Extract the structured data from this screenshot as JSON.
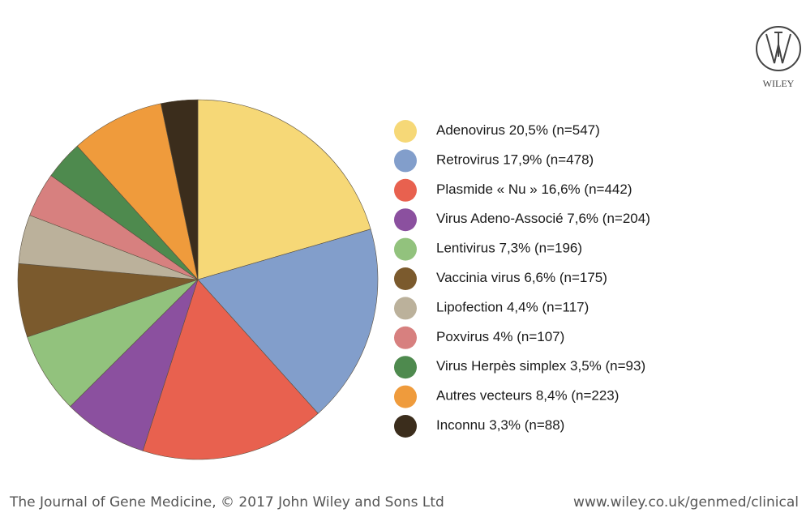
{
  "chart_data": {
    "type": "pie",
    "categories": [
      "Adenovirus",
      "Retrovirus",
      "Plasmide « Nu »",
      "Virus Adeno-Associé",
      "Lentivirus",
      "Vaccinia virus",
      "Lipofection",
      "Poxvirus",
      "Virus Herpès simplex",
      "Autres vecteurs",
      "Inconnu"
    ],
    "values": [
      20.5,
      17.9,
      16.6,
      7.6,
      7.3,
      6.6,
      4.4,
      4,
      3.5,
      8.4,
      3.3
    ],
    "value_labels": [
      "20,5%",
      "17,9%",
      "16,6%",
      "7,6%",
      "7,3%",
      "6,6%",
      "4,4%",
      "4%",
      "3,5%",
      "8,4%",
      "3,3%"
    ],
    "count_labels": [
      "(n=547)",
      "(n=478)",
      "(n=442)",
      "(n=204)",
      "(n=196)",
      "(n=175)",
      "(n=117)",
      "(n=107)",
      "(n=93)",
      "(n=223)",
      "(n=88)"
    ],
    "colors": [
      "#f6d877",
      "#829ecb",
      "#e8614f",
      "#8b509f",
      "#92c27d",
      "#7b5a2d",
      "#bbb19b",
      "#d7807f",
      "#4e8a4e",
      "#ef9b3c",
      "#3b2d1c"
    ],
    "legend": "right",
    "logo": "WILEY",
    "footer_left": "The Journal of Gene Medicine, © 2017 John Wiley and Sons Ltd",
    "footer_right": "www.wiley.co.uk/genmed/clinical"
  }
}
